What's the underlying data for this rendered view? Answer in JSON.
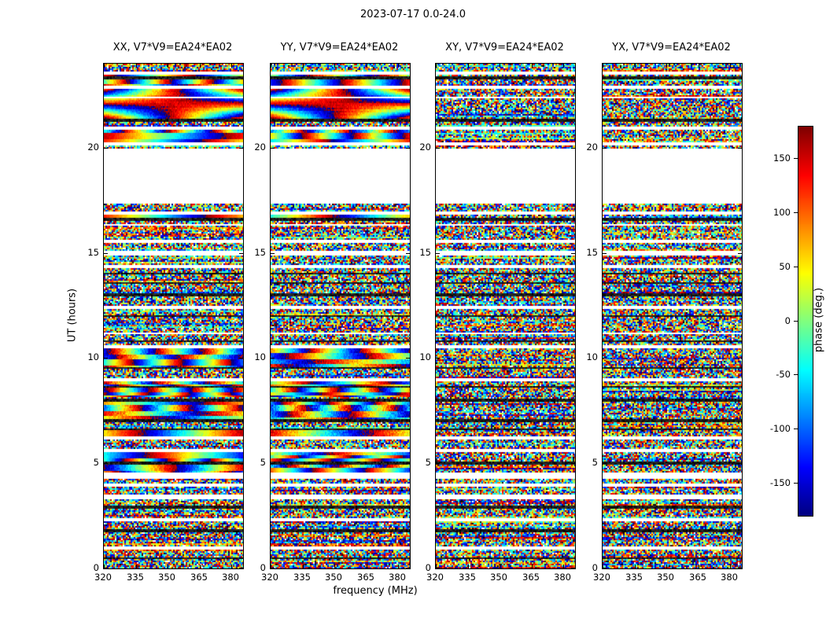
{
  "figure": {
    "title": "2023-07-17 0.0-24.0",
    "xlabel": "frequency (MHz)",
    "ylabel": "UT (hours)",
    "colorbar_label": "phase (deg.)"
  },
  "chart_data": {
    "type": "heatmap",
    "title": "2023-07-17 0.0-24.0",
    "colormap": "jet",
    "panels": [
      {
        "pol": "XX",
        "title": "XX, V7*V9=EA24*EA02",
        "structured": true
      },
      {
        "pol": "YY",
        "title": "YY, V7*V9=EA24*EA02",
        "structured": true
      },
      {
        "pol": "XY",
        "title": "XY, V7*V9=EA24*EA02",
        "structured": false
      },
      {
        "pol": "YX",
        "title": "YX, V7*V9=EA24*EA02",
        "structured": false
      }
    ],
    "x_axis": {
      "label": "frequency (MHz)",
      "unit": "MHz",
      "range": [
        320,
        385.5
      ],
      "ticks": [
        320,
        335,
        350,
        365,
        380
      ]
    },
    "y_axis": {
      "label": "UT (hours)",
      "unit": "hours",
      "range": [
        0,
        24
      ],
      "ticks": [
        0,
        5,
        10,
        15,
        20
      ]
    },
    "colorbar": {
      "label": "phase (deg.)",
      "range": [
        -180,
        180
      ],
      "ticks": [
        150,
        100,
        50,
        0,
        -50,
        -100,
        -150
      ]
    },
    "time_gaps_hours": [
      [
        17.35,
        19.95
      ],
      [
        23.5,
        23.57
      ],
      [
        22.85,
        22.9
      ],
      [
        22.38,
        22.42
      ],
      [
        20.92,
        20.98
      ],
      [
        20.12,
        20.2
      ],
      [
        16.86,
        16.94
      ],
      [
        16.3,
        16.37
      ],
      [
        15.55,
        15.61
      ],
      [
        14.95,
        15.03
      ],
      [
        14.35,
        14.41
      ],
      [
        12.4,
        12.47
      ],
      [
        11.15,
        11.21
      ],
      [
        10.5,
        10.56
      ],
      [
        8.92,
        8.98
      ],
      [
        6.17,
        6.25
      ],
      [
        5.55,
        5.61
      ],
      [
        4.3,
        4.55
      ],
      [
        3.95,
        4.02
      ],
      [
        3.36,
        3.45
      ],
      [
        2.28,
        2.35
      ],
      [
        0.92,
        0.99
      ]
    ],
    "flagged_black_rows_hours": [
      [
        23.3,
        23.35
      ],
      [
        21.27,
        21.33
      ],
      [
        16.57,
        16.62
      ],
      [
        14.0,
        14.04
      ],
      [
        13.54,
        13.59
      ],
      [
        12.98,
        13.03
      ],
      [
        11.98,
        12.03
      ],
      [
        10.78,
        10.83
      ],
      [
        9.52,
        9.57
      ],
      [
        8.62,
        8.66
      ],
      [
        7.99,
        8.04
      ],
      [
        6.98,
        7.03
      ],
      [
        6.58,
        6.62
      ],
      [
        5.0,
        5.05
      ],
      [
        2.88,
        2.93
      ],
      [
        1.78,
        1.83
      ],
      [
        0.48,
        0.52
      ]
    ],
    "coherent_fan_bands_hours": [
      [
        21.35,
        22.85
      ]
    ],
    "coherent_streak_bands_hours": [
      [
        23.38,
        23.5
      ],
      [
        22.9,
        23.3
      ],
      [
        20.3,
        20.9
      ],
      [
        16.62,
        16.84
      ],
      [
        9.6,
        10.45
      ],
      [
        8.15,
        8.9
      ],
      [
        7.1,
        7.95
      ],
      [
        6.3,
        6.55
      ],
      [
        5.06,
        5.5
      ],
      [
        4.58,
        5.0
      ]
    ],
    "noise": "uniform random phase noise elsewhere; white rows are data gaps, dark rows are flagged"
  }
}
